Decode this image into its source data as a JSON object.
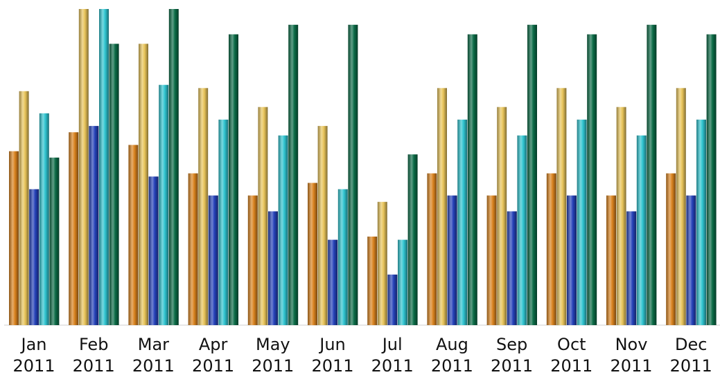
{
  "chart_data": {
    "type": "bar",
    "title": "",
    "xlabel": "",
    "ylabel": "",
    "categories": [
      {
        "month": "Jan",
        "year": "2011"
      },
      {
        "month": "Feb",
        "year": "2011"
      },
      {
        "month": "Mar",
        "year": "2011"
      },
      {
        "month": "Apr",
        "year": "2011"
      },
      {
        "month": "May",
        "year": "2011"
      },
      {
        "month": "Jun",
        "year": "2011"
      },
      {
        "month": "Jul",
        "year": "2011"
      },
      {
        "month": "Aug",
        "year": "2011"
      },
      {
        "month": "Sep",
        "year": "2011"
      },
      {
        "month": "Oct",
        "year": "2011"
      },
      {
        "month": "Nov",
        "year": "2011"
      },
      {
        "month": "Dec",
        "year": "2011"
      }
    ],
    "series": [
      {
        "color": "#d9821e",
        "values": [
          55,
          61,
          57,
          48,
          41,
          45,
          28,
          48,
          41,
          48,
          41,
          48
        ]
      },
      {
        "color": "#e8c45a",
        "values": [
          74,
          100,
          89,
          75,
          69,
          63,
          39,
          75,
          69,
          75,
          69,
          75
        ]
      },
      {
        "color": "#2441b8",
        "values": [
          43,
          63,
          47,
          41,
          36,
          27,
          16,
          41,
          36,
          41,
          36,
          41
        ]
      },
      {
        "color": "#2fc4d0",
        "values": [
          67,
          100,
          76,
          65,
          60,
          43,
          27,
          65,
          60,
          65,
          60,
          65
        ]
      },
      {
        "color": "#0b6b46",
        "values": [
          53,
          89,
          100,
          92,
          95,
          95,
          54,
          92,
          95,
          92,
          95,
          92
        ]
      }
    ],
    "ylim": [
      0,
      100
    ],
    "grid": false,
    "legend": "none"
  }
}
